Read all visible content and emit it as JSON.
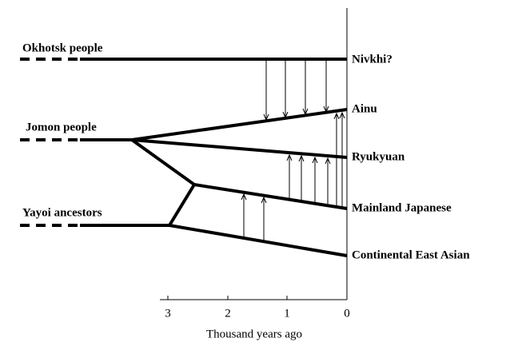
{
  "groups": [
    "Okhotsk people",
    "Jomon people",
    "Yayoi ancestors"
  ],
  "populations": [
    "Nivkhi?",
    "Ainu",
    "Ryukyuan",
    "Mainland Japanese",
    "Continental East Asian"
  ],
  "axis": {
    "ticks": [
      "3",
      "2",
      "1",
      "0"
    ],
    "title": "Thousand years ago"
  }
}
